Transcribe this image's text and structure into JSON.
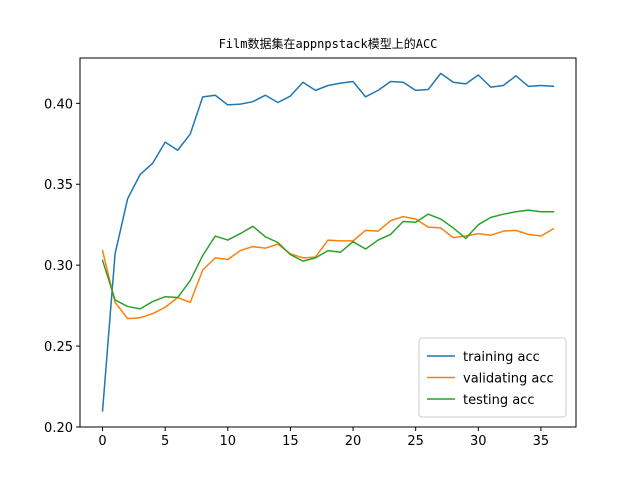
{
  "chart_data": {
    "type": "line",
    "title": "Film数据集在appnpstack模型上的ACC",
    "xlabel": "",
    "ylabel": "",
    "xlim": [
      -1.8,
      37.8
    ],
    "ylim": [
      0.2,
      0.428
    ],
    "xticks": [
      0,
      5,
      10,
      15,
      20,
      25,
      30,
      35
    ],
    "yticks": [
      0.2,
      0.25,
      0.3,
      0.35,
      0.4
    ],
    "ytick_labels": [
      "0.20",
      "0.25",
      "0.30",
      "0.35",
      "0.40"
    ],
    "grid": false,
    "legend_position": "lower-right",
    "x": [
      0,
      1,
      2,
      3,
      4,
      5,
      6,
      7,
      8,
      9,
      10,
      11,
      12,
      13,
      14,
      15,
      16,
      17,
      18,
      19,
      20,
      21,
      22,
      23,
      24,
      25,
      26,
      27,
      28,
      29,
      30,
      31,
      32,
      33,
      34,
      35,
      36
    ],
    "series": [
      {
        "name": "training acc",
        "color": "#1f77b4",
        "values": [
          0.21,
          0.307,
          0.341,
          0.356,
          0.363,
          0.376,
          0.371,
          0.381,
          0.404,
          0.405,
          0.399,
          0.3995,
          0.401,
          0.405,
          0.4005,
          0.4045,
          0.413,
          0.408,
          0.411,
          0.4125,
          0.4135,
          0.404,
          0.408,
          0.4135,
          0.413,
          0.408,
          0.4085,
          0.4185,
          0.413,
          0.412,
          0.4175,
          0.41,
          0.411,
          0.417,
          0.4105,
          0.411,
          0.4105
        ]
      },
      {
        "name": "validating acc",
        "color": "#ff7f0e",
        "values": [
          0.309,
          0.277,
          0.267,
          0.2675,
          0.27,
          0.274,
          0.28,
          0.277,
          0.297,
          0.3045,
          0.3035,
          0.309,
          0.3115,
          0.3105,
          0.313,
          0.307,
          0.3045,
          0.305,
          0.3155,
          0.315,
          0.315,
          0.3215,
          0.321,
          0.3275,
          0.33,
          0.3285,
          0.3235,
          0.323,
          0.317,
          0.318,
          0.3195,
          0.3185,
          0.321,
          0.3215,
          0.319,
          0.318,
          0.3225
        ]
      },
      {
        "name": "testing acc",
        "color": "#2ca02c",
        "values": [
          0.303,
          0.2785,
          0.2745,
          0.273,
          0.2775,
          0.2805,
          0.28,
          0.2905,
          0.306,
          0.318,
          0.3155,
          0.3195,
          0.324,
          0.3175,
          0.314,
          0.3065,
          0.3025,
          0.3045,
          0.309,
          0.308,
          0.3145,
          0.31,
          0.3155,
          0.319,
          0.327,
          0.3265,
          0.3315,
          0.3285,
          0.323,
          0.3165,
          0.325,
          0.3295,
          0.3315,
          0.333,
          0.334,
          0.333,
          0.333
        ]
      }
    ]
  }
}
